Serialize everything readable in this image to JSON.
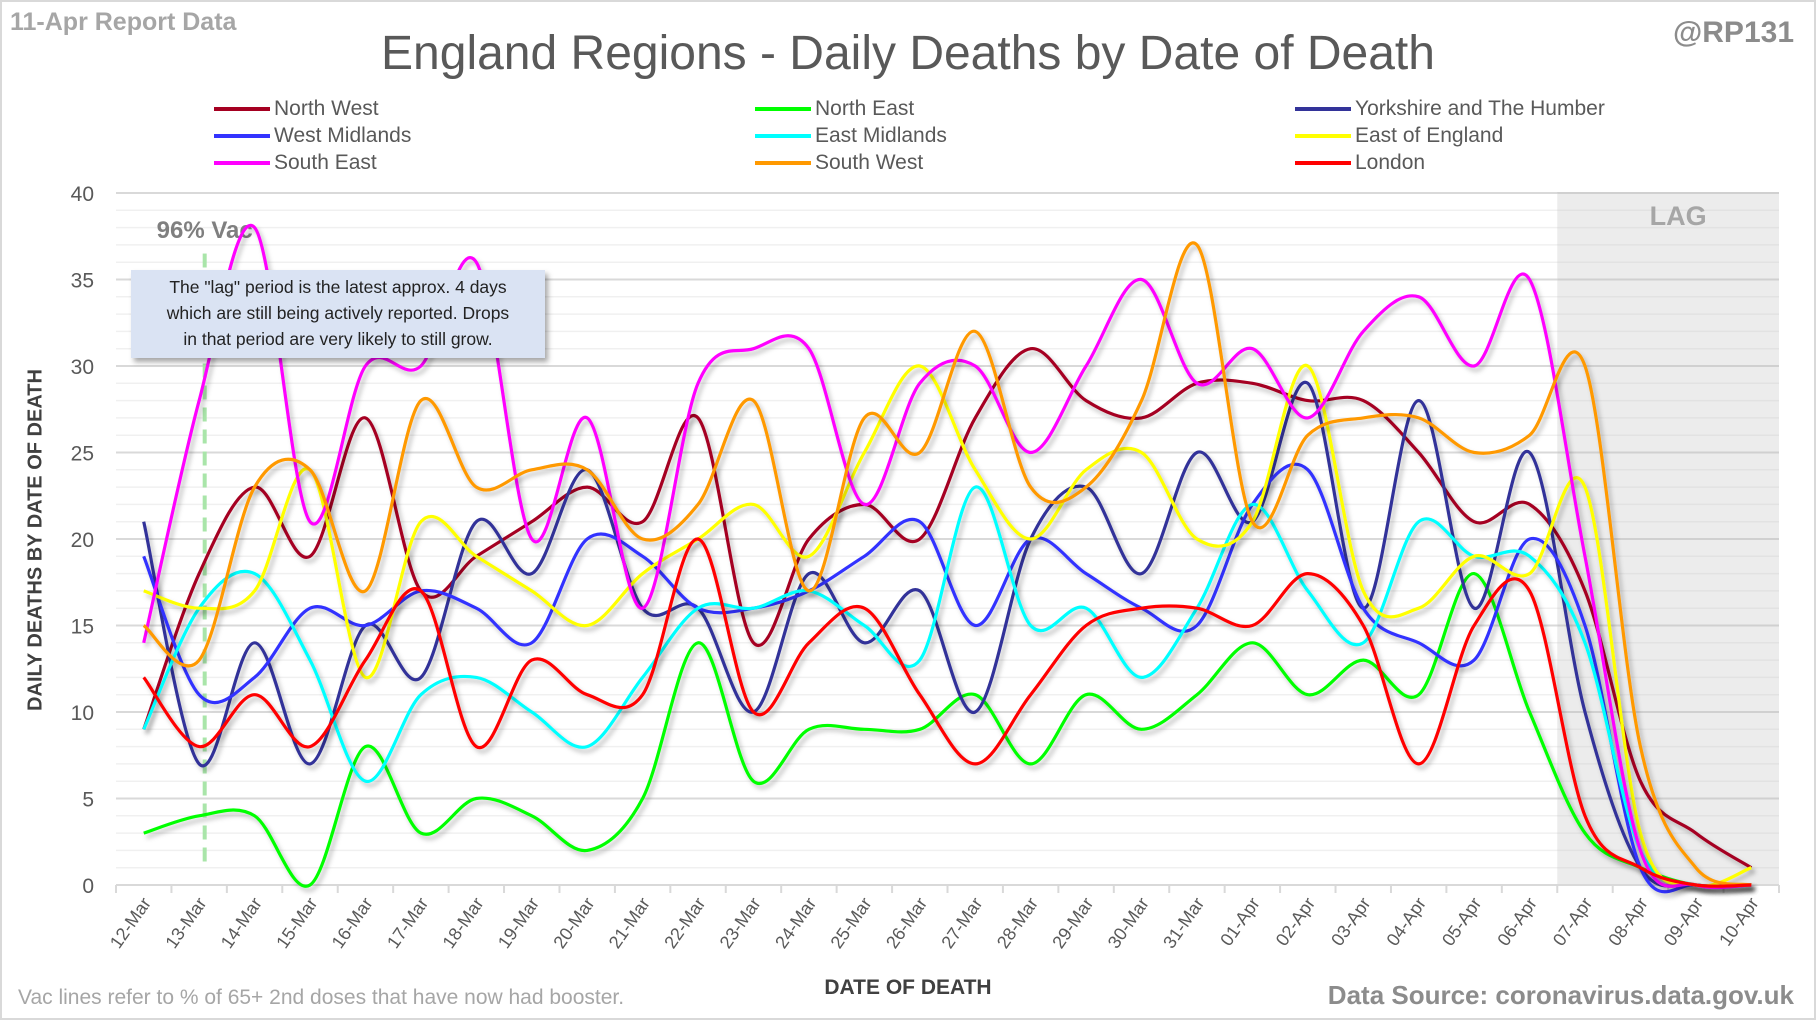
{
  "header": {
    "report_label": "11-Apr Report Data",
    "handle": "@RP131",
    "title": "England Regions - Daily Deaths by Date of Death"
  },
  "annotations": {
    "vac_label": "96% Vac",
    "vac_date_index": 1.1,
    "lag_label": "LAG",
    "lag_start_index": 5.5,
    "note_lines": [
      "The \"lag\" period is the latest approx. 4 days",
      "which are still being actively reported.  Drops",
      "in that period are very likely to still grow."
    ],
    "footnote": "Vac lines refer to % of 65+ 2nd doses that have now had booster.",
    "source": "Data Source: coronavirus.data.gov.uk"
  },
  "chart_data": {
    "type": "line",
    "title": "England Regions - Daily Deaths by Date of Death",
    "xlabel": "DATE OF DEATH",
    "ylabel": "DAILY DEATHS BY DATE OF DEATH",
    "ylim": [
      0,
      40
    ],
    "yticks": [
      0,
      5,
      10,
      15,
      20,
      25,
      30,
      35,
      40
    ],
    "grid": true,
    "legend_position": "top",
    "lag_region": [
      "07-Apr",
      "10-Apr"
    ],
    "x": [
      "12-Mar",
      "13-Mar",
      "14-Mar",
      "15-Mar",
      "16-Mar",
      "17-Mar",
      "18-Mar",
      "19-Mar",
      "20-Mar",
      "21-Mar",
      "22-Mar",
      "23-Mar",
      "24-Mar",
      "25-Mar",
      "26-Mar",
      "27-Mar",
      "28-Mar",
      "29-Mar",
      "30-Mar",
      "31-Mar",
      "01-Apr",
      "02-Apr",
      "03-Apr",
      "04-Apr",
      "05-Apr",
      "06-Apr",
      "07-Apr",
      "08-Apr",
      "09-Apr",
      "10-Apr"
    ],
    "series": [
      {
        "name": "North West",
        "color": "#a50021",
        "values": [
          9,
          18,
          23,
          19,
          27,
          17,
          19,
          21,
          23,
          21,
          27,
          14,
          20,
          22,
          20,
          27,
          31,
          28,
          27,
          29,
          29,
          28,
          28,
          25,
          21,
          22,
          17,
          6,
          3,
          1
        ]
      },
      {
        "name": "North East",
        "color": "#00ff00",
        "values": [
          3,
          4,
          4,
          0,
          8,
          3,
          5,
          4,
          2,
          5,
          14,
          6,
          9,
          9,
          9,
          11,
          7,
          11,
          9,
          11,
          14,
          11,
          13,
          11,
          18,
          10,
          3,
          1,
          0,
          0
        ]
      },
      {
        "name": "Yorkshire and The Humber",
        "color": "#333399",
        "values": [
          21,
          7,
          14,
          7,
          15,
          12,
          21,
          18,
          24,
          16,
          16,
          10,
          18,
          14,
          17,
          10,
          20,
          23,
          18,
          25,
          21,
          29,
          16,
          28,
          16,
          25,
          10,
          1,
          0,
          0
        ]
      },
      {
        "name": "West Midlands",
        "color": "#3333ff",
        "values": [
          19,
          11,
          12,
          16,
          15,
          17,
          16,
          14,
          20,
          19,
          16,
          16,
          17,
          19,
          21,
          15,
          20,
          18,
          16,
          15,
          22,
          24,
          16,
          14,
          13,
          20,
          15,
          1,
          0,
          0
        ]
      },
      {
        "name": "East Midlands",
        "color": "#00ffff",
        "values": [
          9,
          16,
          18,
          13,
          6,
          11,
          12,
          10,
          8,
          12,
          16,
          16,
          17,
          15,
          13,
          23,
          15,
          16,
          12,
          16,
          22,
          17,
          14,
          21,
          19,
          19,
          14,
          2,
          0,
          0
        ]
      },
      {
        "name": "East of England",
        "color": "#ffff00",
        "values": [
          17,
          16,
          17,
          24,
          12,
          21,
          19,
          17,
          15,
          18,
          20,
          22,
          19,
          25,
          30,
          24,
          20,
          24,
          25,
          20,
          21,
          30,
          17,
          16,
          19,
          18,
          23,
          3,
          0,
          1
        ]
      },
      {
        "name": "South East",
        "color": "#ff00ff",
        "values": [
          14,
          28,
          38,
          21,
          30,
          30,
          36,
          20,
          27,
          16,
          29,
          31,
          31,
          22,
          29,
          30,
          25,
          30,
          35,
          29,
          31,
          27,
          32,
          34,
          30,
          35,
          19,
          2,
          0,
          0
        ]
      },
      {
        "name": "South West",
        "color": "#ff9900",
        "values": [
          15,
          13,
          23,
          24,
          17,
          28,
          23,
          24,
          24,
          20,
          22,
          28,
          17,
          27,
          25,
          32,
          23,
          23,
          28,
          37,
          21,
          26,
          27,
          27,
          25,
          26,
          30,
          8,
          1,
          0
        ]
      },
      {
        "name": "London",
        "color": "#ff0000",
        "values": [
          12,
          8,
          11,
          8,
          13,
          17,
          8,
          13,
          11,
          11,
          20,
          10,
          14,
          16,
          11,
          7,
          11,
          15,
          16,
          16,
          15,
          18,
          15,
          7,
          15,
          17,
          4,
          1,
          0,
          0
        ]
      }
    ]
  },
  "legend_layout_order": [
    "North West",
    "North East",
    "Yorkshire and The Humber",
    "West Midlands",
    "East Midlands",
    "East of England",
    "South East",
    "South West",
    "London"
  ]
}
